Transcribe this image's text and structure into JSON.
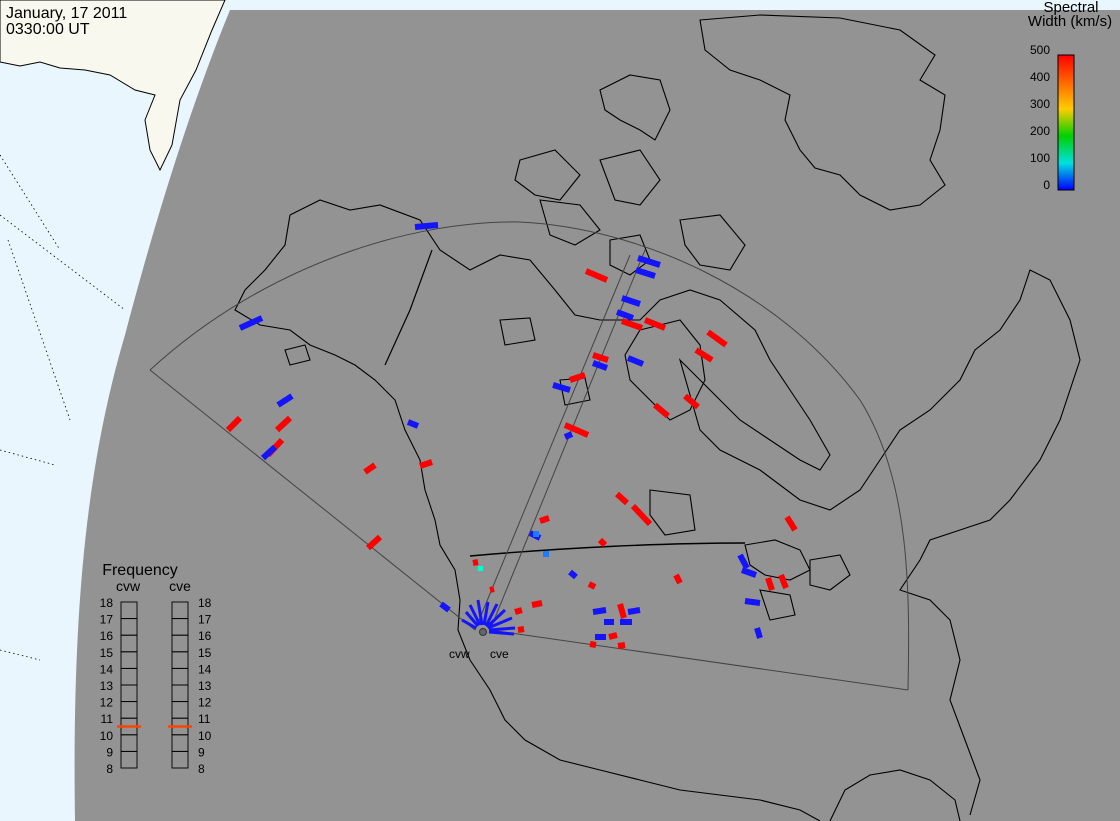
{
  "header": {
    "date": "January, 17 2011",
    "time": "0330:00 UT"
  },
  "legend": {
    "title_line1": "Spectral",
    "title_line2": "Width (km/s)",
    "ticks": [
      "500",
      "400",
      "300",
      "200",
      "100",
      "0"
    ],
    "colors": [
      "#ff0000",
      "#ff8c00",
      "#ffff00",
      "#00d000",
      "#00e0e0",
      "#0000ff"
    ]
  },
  "radars": [
    {
      "id": "cvw",
      "label": "cvw"
    },
    {
      "id": "cve",
      "label": "cve"
    }
  ],
  "frequency_panel": {
    "title": "Frequency",
    "scale": [
      "18",
      "17",
      "16",
      "15",
      "14",
      "13",
      "12",
      "11",
      "10",
      "9",
      "8"
    ],
    "selected_mhz": 10.5,
    "marker_color": "#ff4400"
  },
  "colors": {
    "background": "#ffffff",
    "ocean_unlit": "#e9f6fd",
    "land_unlit": "#f8f8ee",
    "night_shade": "#939393",
    "scatter_red": "#ff0000",
    "scatter_blue": "#1414ff"
  }
}
